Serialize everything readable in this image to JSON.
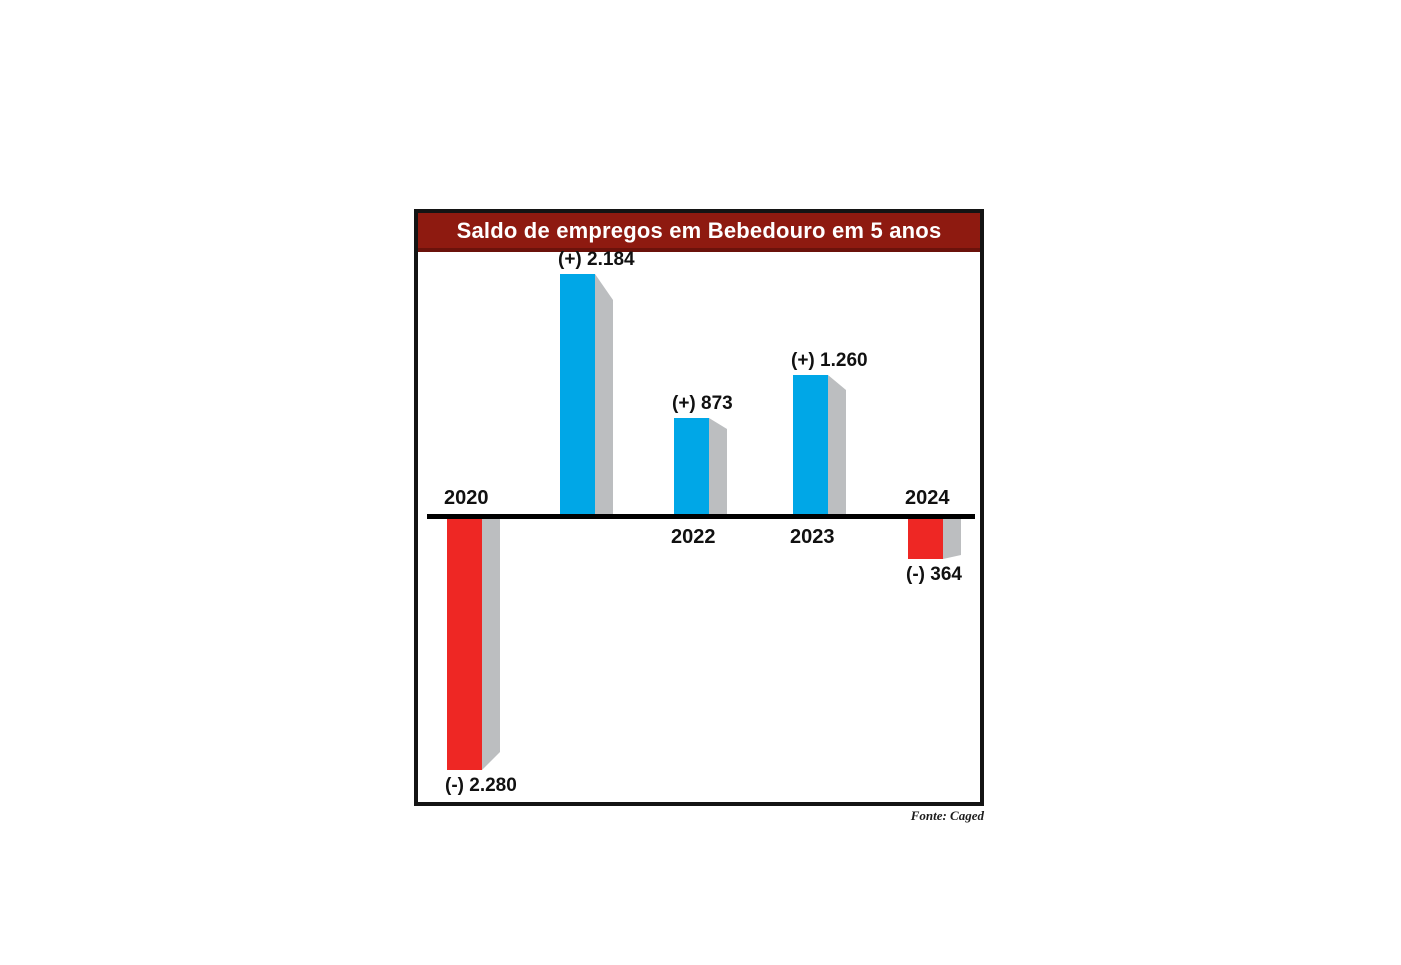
{
  "chart_data": {
    "type": "bar",
    "title": "Saldo de empregos em Bebedouro em 5 anos",
    "source_note": "Fonte: Caged",
    "categories": [
      "2020",
      "",
      "2022",
      "2023",
      "2024"
    ],
    "values": [
      -2280,
      2184,
      873,
      1260,
      -364
    ],
    "bars": [
      {
        "year_label": "2020",
        "value": -2280,
        "value_label": "(-) 2.280"
      },
      {
        "year_label": "",
        "value": 2184,
        "value_label": "(+) 2.184"
      },
      {
        "year_label": "2022",
        "value": 873,
        "value_label": "(+) 873"
      },
      {
        "year_label": "2023",
        "value": 1260,
        "value_label": "(+) 1.260"
      },
      {
        "year_label": "2024",
        "value": -364,
        "value_label": "(-) 364"
      }
    ],
    "ylim": [
      -2280,
      2184
    ],
    "grid": false,
    "legend": "none",
    "layout_hint": "positive bars above baseline in blue, negative bars below baseline in red, 3D gray side shadow on right of each bar, year labels on opposite side of baseline from bar",
    "colors": {
      "positive_bar": "#00a7e7",
      "negative_bar": "#ee2724",
      "side_shadow": "#bcbec0",
      "axis": "#000000",
      "title_background": "#8e1a10",
      "title_bottom_edge": "#6b120b",
      "title_text": "#ffffff",
      "frame_border": "#141414",
      "label_text": "#111111"
    }
  }
}
